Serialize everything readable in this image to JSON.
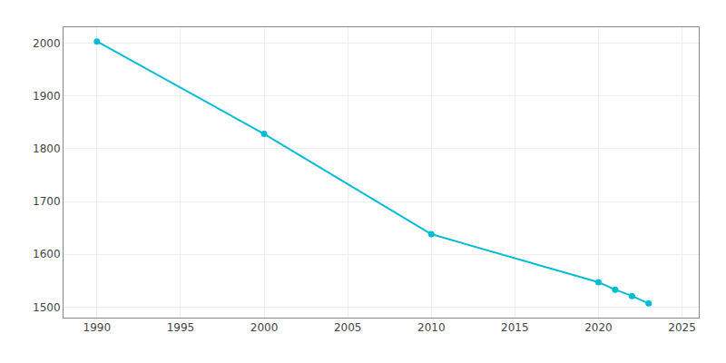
{
  "chart_data": {
    "type": "line",
    "x": [
      1990,
      2000,
      2010,
      2020,
      2021,
      2022,
      2023
    ],
    "values": [
      2003,
      1828,
      1638,
      1547,
      1533,
      1521,
      1507
    ],
    "color": "#00bcd4",
    "marker": "circle",
    "xlim": [
      1988,
      2026
    ],
    "ylim": [
      1480,
      2030
    ],
    "xticks": [
      1990,
      1995,
      2000,
      2005,
      2010,
      2015,
      2020,
      2025
    ],
    "yticks": [
      1500,
      1600,
      1700,
      1800,
      1900,
      2000
    ],
    "grid": true
  }
}
